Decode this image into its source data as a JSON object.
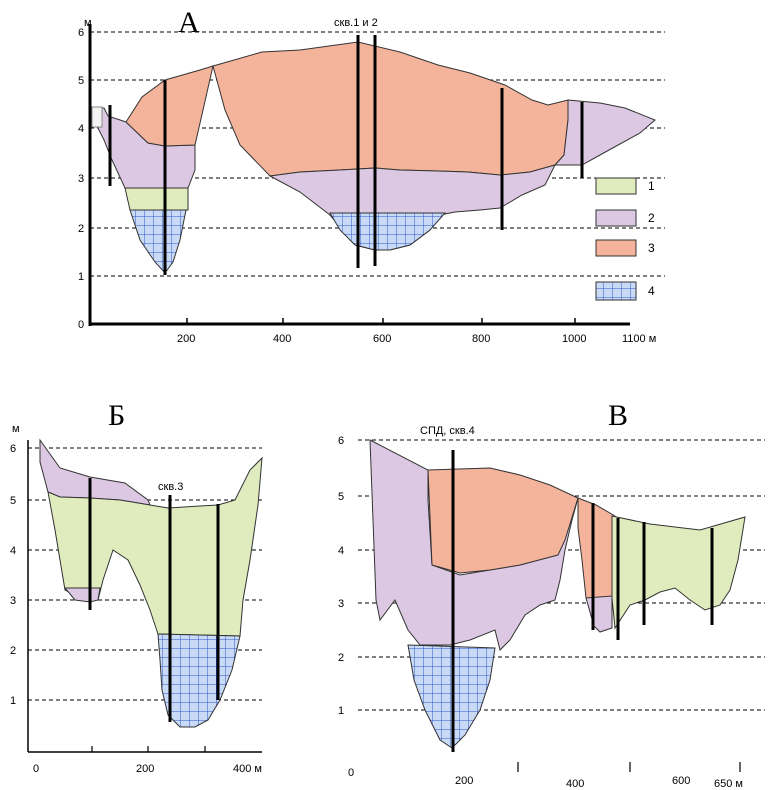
{
  "panels": {
    "a": {
      "title": "А",
      "y_unit": "м",
      "y_ticks": [
        "0",
        "1",
        "2",
        "3",
        "4",
        "5",
        "6"
      ],
      "x_ticks": [
        "200",
        "400",
        "600",
        "800",
        "1000"
      ],
      "x_end": "1100 м",
      "well_label": "скв.1 и 2"
    },
    "b": {
      "title": "Б",
      "y_unit": "м",
      "y_ticks": [
        "1",
        "2",
        "3",
        "4",
        "5",
        "6"
      ],
      "x_ticks": [
        "0",
        "200"
      ],
      "x_end": "400 м",
      "well_label": "скв.3"
    },
    "v": {
      "title": "В",
      "y_ticks": [
        "1",
        "2",
        "3",
        "4",
        "5",
        "6"
      ],
      "x_ticks": [
        "0",
        "200",
        "400",
        "600"
      ],
      "x_end": "650 м",
      "well_label": "СПД, скв.4"
    }
  },
  "legend": {
    "items": [
      {
        "label": "1",
        "color": "#e0ecbe"
      },
      {
        "label": "2",
        "color": "#dcc8e2"
      },
      {
        "label": "3",
        "color": "#f4b39b"
      },
      {
        "label": "4",
        "color": "#c8daf5"
      }
    ]
  },
  "colors": {
    "layer1": "#e0ecbe",
    "layer2": "#dcc8e2",
    "layer3": "#f4b39b",
    "layer4_fill": "#c8daf5",
    "layer4_grid": "#2f56c8"
  }
}
